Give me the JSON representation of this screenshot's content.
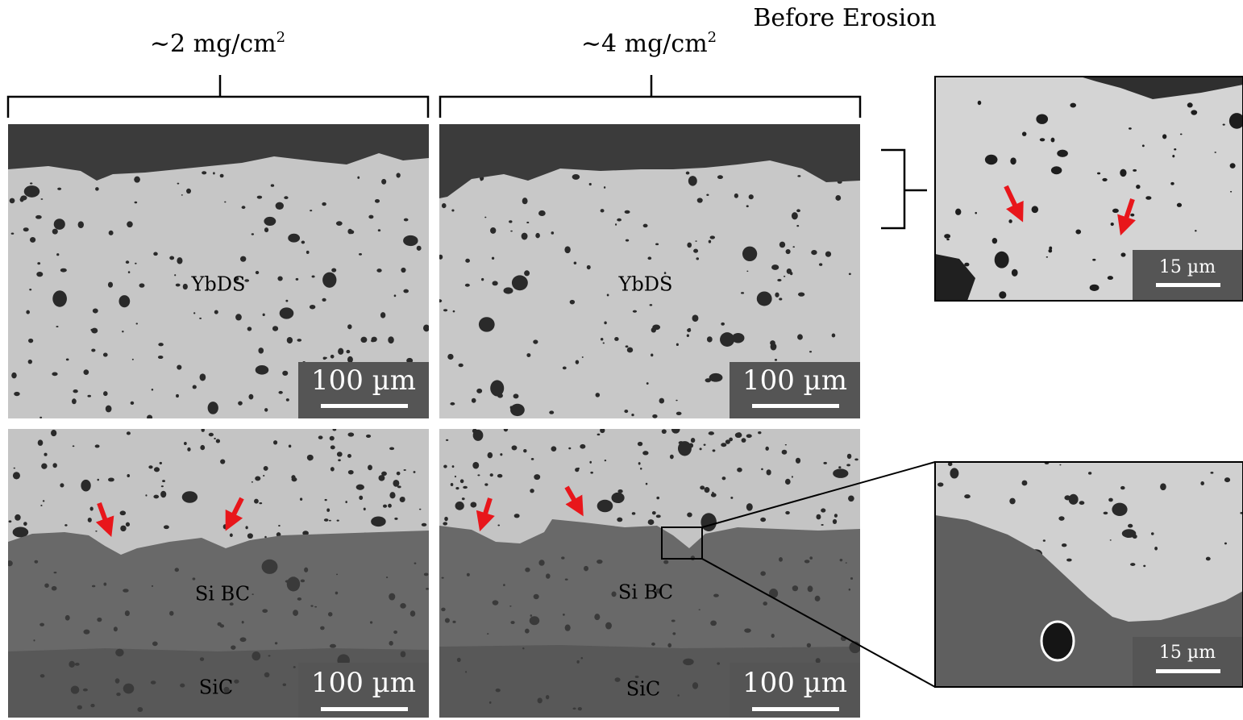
{
  "title": "Before Erosion",
  "columns": [
    {
      "label": "∼2 mg/cm",
      "sup": "2"
    },
    {
      "label": "∼4 mg/cm",
      "sup": "2"
    }
  ],
  "panels": [
    {
      "labels": [
        "YbDS"
      ],
      "scale_bar": "100 µm"
    },
    {
      "labels": [
        "YbDS"
      ],
      "scale_bar": "100 µm"
    },
    {
      "labels": [
        "Si BC",
        "SiC"
      ],
      "scale_bar": "100 µm"
    },
    {
      "labels": [
        "Si BC",
        "SiC"
      ],
      "scale_bar": "100 µm"
    }
  ],
  "insets": [
    {
      "scale_bar": "15 µm"
    },
    {
      "scale_bar": "15 µm"
    }
  ]
}
